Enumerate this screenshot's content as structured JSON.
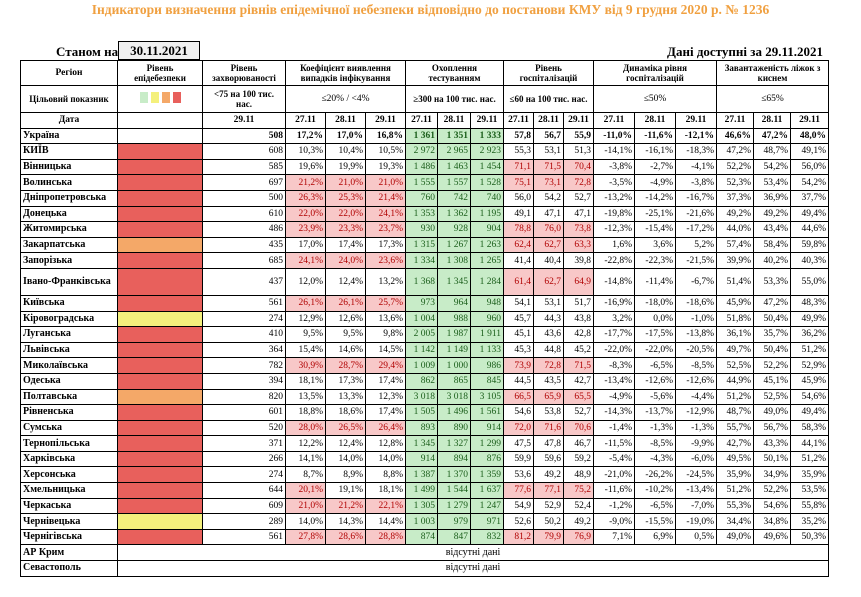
{
  "title": "Індикатори визначення рівнів епідемічної небезпеки відповідно до постанови КМУ від 9 грудня 2020 р. № 1236",
  "as_of_label": "Станом на",
  "as_of_date": "30.11.2021",
  "data_available": "Дані доступні за 29.11.2021",
  "headers": {
    "region": "Регіон",
    "target": "Цільовий показник",
    "date": "Дата",
    "level": "Рівень епідебезпеки",
    "incidence": "Рівень захворюваності",
    "incidence_target": "<75 на 100 тис. нас.",
    "incidence_date": "29.11",
    "positivity": "Коефіцієнт виявлення випадків інфікування",
    "positivity_target": "≤20% / <4%",
    "testing": "Охоплення тестуванням",
    "testing_target": "≥300 на 100 тис. нас.",
    "hosp": "Рівень госпіталізацій",
    "hosp_target": "≤60 на 100 тис. нас.",
    "hosp_dyn": "Динаміка рівня госпіталізацій",
    "hosp_dyn_target": "≤50%",
    "oxy": "Завантаженість ліжок з киснем",
    "oxy_target": "≤65%",
    "d1": "27.11",
    "d2": "28.11",
    "d3": "29.11"
  },
  "colors": {
    "red": "#e8605c",
    "orange": "#f4a868",
    "yellow": "#f4f07c",
    "green": "#c8ecc8",
    "pink": "#f8c8c8",
    "title": "#f0a040"
  },
  "rows": [
    {
      "name": "Україна",
      "level": "wht",
      "inc": "508",
      "pos": [
        "17,2%",
        "17,0%",
        "16,8%"
      ],
      "tst": [
        "1 361",
        "1 351",
        "1 333"
      ],
      "hsp": [
        "57,8",
        "56,7",
        "55,9"
      ],
      "dyn": [
        "-11,0%",
        "-11,6%",
        "-12,1%"
      ],
      "oxy": [
        "46,6%",
        "47,2%",
        "48,0%"
      ],
      "pp": [
        0,
        0,
        0
      ],
      "tg": [
        1,
        1,
        1
      ],
      "hp": [
        0,
        0,
        0
      ],
      "total": true
    },
    {
      "name": "КИЇВ",
      "level": "red",
      "inc": "608",
      "pos": [
        "10,3%",
        "10,4%",
        "10,5%"
      ],
      "tst": [
        "2 972",
        "2 965",
        "2 923"
      ],
      "hsp": [
        "55,3",
        "53,1",
        "51,3"
      ],
      "dyn": [
        "-14,1%",
        "-16,1%",
        "-18,3%"
      ],
      "oxy": [
        "47,2%",
        "48,7%",
        "49,1%"
      ],
      "pp": [
        0,
        0,
        0
      ],
      "tg": [
        1,
        1,
        1
      ],
      "hp": [
        0,
        0,
        0
      ]
    },
    {
      "name": "Вінницька",
      "level": "red",
      "inc": "585",
      "pos": [
        "19,6%",
        "19,9%",
        "19,3%"
      ],
      "tst": [
        "1 486",
        "1 463",
        "1 454"
      ],
      "hsp": [
        "71,1",
        "71,5",
        "70,4"
      ],
      "dyn": [
        "-3,8%",
        "-2,7%",
        "-4,1%"
      ],
      "oxy": [
        "52,2%",
        "54,2%",
        "56,0%"
      ],
      "pp": [
        0,
        0,
        0
      ],
      "tg": [
        1,
        1,
        1
      ],
      "hp": [
        1,
        1,
        1
      ]
    },
    {
      "name": "Волинська",
      "level": "red",
      "inc": "697",
      "pos": [
        "21,2%",
        "21,0%",
        "21,0%"
      ],
      "tst": [
        "1 555",
        "1 557",
        "1 528"
      ],
      "hsp": [
        "75,1",
        "73,1",
        "72,8"
      ],
      "dyn": [
        "-3,5%",
        "-4,9%",
        "-3,8%"
      ],
      "oxy": [
        "52,3%",
        "53,4%",
        "54,2%"
      ],
      "pp": [
        1,
        1,
        1
      ],
      "tg": [
        1,
        1,
        1
      ],
      "hp": [
        1,
        1,
        1
      ]
    },
    {
      "name": "Дніпропетровська",
      "level": "red",
      "inc": "500",
      "pos": [
        "26,3%",
        "25,3%",
        "21,4%"
      ],
      "tst": [
        "760",
        "742",
        "740"
      ],
      "hsp": [
        "56,0",
        "54,2",
        "52,7"
      ],
      "dyn": [
        "-13,2%",
        "-14,2%",
        "-16,7%"
      ],
      "oxy": [
        "37,3%",
        "36,9%",
        "37,7%"
      ],
      "pp": [
        1,
        1,
        1
      ],
      "tg": [
        1,
        1,
        1
      ],
      "hp": [
        0,
        0,
        0
      ]
    },
    {
      "name": "Донецька",
      "level": "red",
      "inc": "610",
      "pos": [
        "22,0%",
        "22,0%",
        "24,1%"
      ],
      "tst": [
        "1 353",
        "1 362",
        "1 195"
      ],
      "hsp": [
        "49,1",
        "47,1",
        "47,1"
      ],
      "dyn": [
        "-19,8%",
        "-25,1%",
        "-21,6%"
      ],
      "oxy": [
        "49,2%",
        "49,2%",
        "49,4%"
      ],
      "pp": [
        1,
        1,
        1
      ],
      "tg": [
        1,
        1,
        1
      ],
      "hp": [
        0,
        0,
        0
      ]
    },
    {
      "name": "Житомирська",
      "level": "red",
      "inc": "486",
      "pos": [
        "23,9%",
        "23,3%",
        "23,7%"
      ],
      "tst": [
        "930",
        "928",
        "904"
      ],
      "hsp": [
        "78,8",
        "76,0",
        "73,8"
      ],
      "dyn": [
        "-12,3%",
        "-15,4%",
        "-17,2%"
      ],
      "oxy": [
        "44,0%",
        "43,4%",
        "44,6%"
      ],
      "pp": [
        1,
        1,
        1
      ],
      "tg": [
        1,
        1,
        1
      ],
      "hp": [
        1,
        1,
        1
      ]
    },
    {
      "name": "Закарпатська",
      "level": "org",
      "inc": "435",
      "pos": [
        "17,0%",
        "17,4%",
        "17,3%"
      ],
      "tst": [
        "1 315",
        "1 267",
        "1 263"
      ],
      "hsp": [
        "62,4",
        "62,7",
        "63,3"
      ],
      "dyn": [
        "1,6%",
        "3,6%",
        "5,2%"
      ],
      "oxy": [
        "57,4%",
        "58,4%",
        "59,8%"
      ],
      "pp": [
        0,
        0,
        0
      ],
      "tg": [
        1,
        1,
        1
      ],
      "hp": [
        1,
        1,
        1
      ]
    },
    {
      "name": "Запорізька",
      "level": "red",
      "inc": "685",
      "pos": [
        "24,1%",
        "24,0%",
        "23,6%"
      ],
      "tst": [
        "1 334",
        "1 308",
        "1 265"
      ],
      "hsp": [
        "41,4",
        "40,4",
        "39,8"
      ],
      "dyn": [
        "-22,8%",
        "-22,3%",
        "-21,5%"
      ],
      "oxy": [
        "39,9%",
        "40,2%",
        "40,3%"
      ],
      "pp": [
        1,
        1,
        1
      ],
      "tg": [
        1,
        1,
        1
      ],
      "hp": [
        0,
        0,
        0
      ]
    },
    {
      "name": "Івано-Франківська",
      "level": "red",
      "inc": "437",
      "pos": [
        "12,0%",
        "12,4%",
        "13,2%"
      ],
      "tst": [
        "1 368",
        "1 345",
        "1 284"
      ],
      "hsp": [
        "61,4",
        "62,7",
        "64,9"
      ],
      "dyn": [
        "-14,8%",
        "-11,4%",
        "-6,7%"
      ],
      "oxy": [
        "51,4%",
        "53,3%",
        "55,0%"
      ],
      "pp": [
        0,
        0,
        0
      ],
      "tg": [
        1,
        1,
        1
      ],
      "hp": [
        1,
        1,
        1
      ],
      "tall": true
    },
    {
      "name": "Київська",
      "level": "red",
      "inc": "561",
      "pos": [
        "26,1%",
        "26,1%",
        "25,7%"
      ],
      "tst": [
        "973",
        "964",
        "948"
      ],
      "hsp": [
        "54,1",
        "53,1",
        "51,7"
      ],
      "dyn": [
        "-16,9%",
        "-18,0%",
        "-18,6%"
      ],
      "oxy": [
        "45,9%",
        "47,2%",
        "48,3%"
      ],
      "pp": [
        1,
        1,
        1
      ],
      "tg": [
        1,
        1,
        1
      ],
      "hp": [
        0,
        0,
        0
      ]
    },
    {
      "name": "Кіровоградська",
      "level": "yel",
      "inc": "274",
      "pos": [
        "12,9%",
        "12,6%",
        "13,6%"
      ],
      "tst": [
        "1 004",
        "988",
        "960"
      ],
      "hsp": [
        "45,7",
        "44,3",
        "43,8"
      ],
      "dyn": [
        "3,2%",
        "0,0%",
        "-1,0%"
      ],
      "oxy": [
        "51,8%",
        "50,4%",
        "49,9%"
      ],
      "pp": [
        0,
        0,
        0
      ],
      "tg": [
        1,
        1,
        1
      ],
      "hp": [
        0,
        0,
        0
      ]
    },
    {
      "name": "Луганська",
      "level": "red",
      "inc": "410",
      "pos": [
        "9,5%",
        "9,5%",
        "9,8%"
      ],
      "tst": [
        "2 005",
        "1 987",
        "1 911"
      ],
      "hsp": [
        "45,1",
        "43,6",
        "42,8"
      ],
      "dyn": [
        "-17,7%",
        "-17,5%",
        "-13,8%"
      ],
      "oxy": [
        "36,1%",
        "35,7%",
        "36,2%"
      ],
      "pp": [
        0,
        0,
        0
      ],
      "tg": [
        1,
        1,
        1
      ],
      "hp": [
        0,
        0,
        0
      ]
    },
    {
      "name": "Львівська",
      "level": "red",
      "inc": "364",
      "pos": [
        "15,4%",
        "14,6%",
        "14,5%"
      ],
      "tst": [
        "1 142",
        "1 149",
        "1 133"
      ],
      "hsp": [
        "45,3",
        "44,8",
        "45,2"
      ],
      "dyn": [
        "-22,0%",
        "-22,0%",
        "-20,5%"
      ],
      "oxy": [
        "49,7%",
        "50,4%",
        "51,2%"
      ],
      "pp": [
        0,
        0,
        0
      ],
      "tg": [
        1,
        1,
        1
      ],
      "hp": [
        0,
        0,
        0
      ]
    },
    {
      "name": "Миколаївська",
      "level": "red",
      "inc": "782",
      "pos": [
        "30,9%",
        "28,7%",
        "29,4%"
      ],
      "tst": [
        "1 009",
        "1 000",
        "986"
      ],
      "hsp": [
        "73,9",
        "72,8",
        "71,5"
      ],
      "dyn": [
        "-8,3%",
        "-6,5%",
        "-8,5%"
      ],
      "oxy": [
        "52,5%",
        "52,2%",
        "52,9%"
      ],
      "pp": [
        1,
        1,
        1
      ],
      "tg": [
        1,
        1,
        1
      ],
      "hp": [
        1,
        1,
        1
      ]
    },
    {
      "name": "Одеська",
      "level": "red",
      "inc": "394",
      "pos": [
        "18,1%",
        "17,3%",
        "17,4%"
      ],
      "tst": [
        "862",
        "865",
        "845"
      ],
      "hsp": [
        "44,5",
        "43,5",
        "42,7"
      ],
      "dyn": [
        "-13,4%",
        "-12,6%",
        "-12,6%"
      ],
      "oxy": [
        "44,9%",
        "45,1%",
        "45,9%"
      ],
      "pp": [
        0,
        0,
        0
      ],
      "tg": [
        1,
        1,
        1
      ],
      "hp": [
        0,
        0,
        0
      ]
    },
    {
      "name": "Полтавська",
      "level": "org",
      "inc": "820",
      "pos": [
        "13,5%",
        "13,3%",
        "12,3%"
      ],
      "tst": [
        "3 018",
        "3 018",
        "3 105"
      ],
      "hsp": [
        "66,5",
        "65,9",
        "65,5"
      ],
      "dyn": [
        "-4,9%",
        "-5,6%",
        "-4,4%"
      ],
      "oxy": [
        "51,2%",
        "52,5%",
        "54,6%"
      ],
      "pp": [
        0,
        0,
        0
      ],
      "tg": [
        1,
        1,
        1
      ],
      "hp": [
        1,
        1,
        1
      ]
    },
    {
      "name": "Рівненська",
      "level": "red",
      "inc": "601",
      "pos": [
        "18,8%",
        "18,6%",
        "17,4%"
      ],
      "tst": [
        "1 505",
        "1 496",
        "1 561"
      ],
      "hsp": [
        "54,6",
        "53,8",
        "52,7"
      ],
      "dyn": [
        "-14,3%",
        "-13,7%",
        "-12,9%"
      ],
      "oxy": [
        "48,7%",
        "49,0%",
        "49,4%"
      ],
      "pp": [
        0,
        0,
        0
      ],
      "tg": [
        1,
        1,
        1
      ],
      "hp": [
        0,
        0,
        0
      ]
    },
    {
      "name": "Сумська",
      "level": "red",
      "inc": "520",
      "pos": [
        "28,0%",
        "26,5%",
        "26,4%"
      ],
      "tst": [
        "893",
        "890",
        "914"
      ],
      "hsp": [
        "72,0",
        "71,6",
        "70,6"
      ],
      "dyn": [
        "-1,4%",
        "-1,3%",
        "-1,3%"
      ],
      "oxy": [
        "55,7%",
        "56,7%",
        "58,3%"
      ],
      "pp": [
        1,
        1,
        1
      ],
      "tg": [
        1,
        1,
        1
      ],
      "hp": [
        1,
        1,
        1
      ]
    },
    {
      "name": "Тернопільська",
      "level": "red",
      "inc": "371",
      "pos": [
        "12,2%",
        "12,4%",
        "12,8%"
      ],
      "tst": [
        "1 345",
        "1 327",
        "1 299"
      ],
      "hsp": [
        "47,5",
        "47,8",
        "46,7"
      ],
      "dyn": [
        "-11,5%",
        "-8,5%",
        "-9,9%"
      ],
      "oxy": [
        "42,7%",
        "43,3%",
        "44,1%"
      ],
      "pp": [
        0,
        0,
        0
      ],
      "tg": [
        1,
        1,
        1
      ],
      "hp": [
        0,
        0,
        0
      ]
    },
    {
      "name": "Харківська",
      "level": "red",
      "inc": "266",
      "pos": [
        "14,1%",
        "14,0%",
        "14,0%"
      ],
      "tst": [
        "914",
        "894",
        "876"
      ],
      "hsp": [
        "59,9",
        "59,6",
        "59,2"
      ],
      "dyn": [
        "-5,4%",
        "-4,3%",
        "-6,0%"
      ],
      "oxy": [
        "49,5%",
        "50,1%",
        "51,2%"
      ],
      "pp": [
        0,
        0,
        0
      ],
      "tg": [
        1,
        1,
        1
      ],
      "hp": [
        0,
        0,
        0
      ]
    },
    {
      "name": "Херсонська",
      "level": "red",
      "inc": "274",
      "pos": [
        "8,7%",
        "8,9%",
        "8,8%"
      ],
      "tst": [
        "1 387",
        "1 370",
        "1 359"
      ],
      "hsp": [
        "53,6",
        "49,2",
        "48,9"
      ],
      "dyn": [
        "-21,0%",
        "-26,2%",
        "-24,5%"
      ],
      "oxy": [
        "35,9%",
        "34,9%",
        "35,9%"
      ],
      "pp": [
        0,
        0,
        0
      ],
      "tg": [
        1,
        1,
        1
      ],
      "hp": [
        0,
        0,
        0
      ]
    },
    {
      "name": "Хмельницька",
      "level": "red",
      "inc": "644",
      "pos": [
        "20,1%",
        "19,1%",
        "18,1%"
      ],
      "tst": [
        "1 499",
        "1 544",
        "1 637"
      ],
      "hsp": [
        "77,6",
        "77,1",
        "75,2"
      ],
      "dyn": [
        "-11,6%",
        "-10,2%",
        "-13,4%"
      ],
      "oxy": [
        "51,2%",
        "52,2%",
        "53,5%"
      ],
      "pp": [
        1,
        0,
        0
      ],
      "tg": [
        1,
        1,
        1
      ],
      "hp": [
        1,
        1,
        1
      ]
    },
    {
      "name": "Черкаська",
      "level": "red",
      "inc": "609",
      "pos": [
        "21,0%",
        "21,2%",
        "22,1%"
      ],
      "tst": [
        "1 305",
        "1 279",
        "1 247"
      ],
      "hsp": [
        "54,9",
        "52,9",
        "52,4"
      ],
      "dyn": [
        "-1,2%",
        "-6,5%",
        "-7,0%"
      ],
      "oxy": [
        "55,3%",
        "54,6%",
        "55,8%"
      ],
      "pp": [
        1,
        1,
        1
      ],
      "tg": [
        1,
        1,
        1
      ],
      "hp": [
        0,
        0,
        0
      ]
    },
    {
      "name": "Чернівецька",
      "level": "yel",
      "inc": "289",
      "pos": [
        "14,0%",
        "14,3%",
        "14,4%"
      ],
      "tst": [
        "1 003",
        "979",
        "971"
      ],
      "hsp": [
        "52,6",
        "50,2",
        "49,2"
      ],
      "dyn": [
        "-9,0%",
        "-15,5%",
        "-19,0%"
      ],
      "oxy": [
        "34,4%",
        "34,8%",
        "35,2%"
      ],
      "pp": [
        0,
        0,
        0
      ],
      "tg": [
        1,
        1,
        1
      ],
      "hp": [
        0,
        0,
        0
      ]
    },
    {
      "name": "Чернігівська",
      "level": "red",
      "inc": "561",
      "pos": [
        "27,8%",
        "28,6%",
        "28,8%"
      ],
      "tst": [
        "874",
        "847",
        "832"
      ],
      "hsp": [
        "81,2",
        "79,9",
        "76,9"
      ],
      "dyn": [
        "7,1%",
        "6,9%",
        "0,5%"
      ],
      "oxy": [
        "49,0%",
        "49,6%",
        "50,3%"
      ],
      "pp": [
        1,
        1,
        1
      ],
      "tg": [
        1,
        1,
        1
      ],
      "hp": [
        1,
        1,
        1
      ]
    }
  ],
  "missing": [
    {
      "name": "АР Крим",
      "text": "відсутні дані"
    },
    {
      "name": "Севастополь",
      "text": "відсутні дані"
    }
  ]
}
